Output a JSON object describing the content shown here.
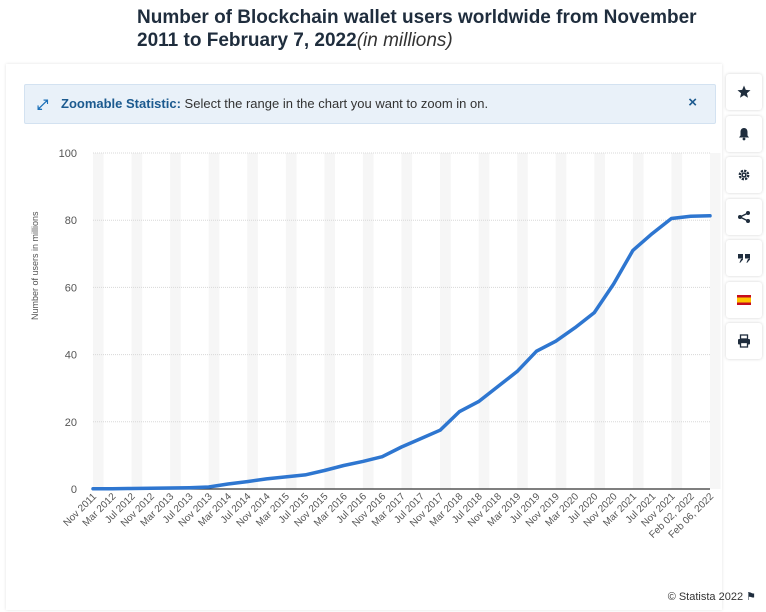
{
  "title": {
    "main": "Number of Blockchain wallet users worldwide from November 2011 to February 7, 2022",
    "sub": "(in millions)"
  },
  "banner": {
    "label": "Zoomable Statistic:",
    "text": "Select the range in the chart you want to zoom in on.",
    "close": "×"
  },
  "sidebar": [
    "star-icon",
    "bell-icon",
    "gear-icon",
    "share-icon",
    "quote-icon",
    "flag-icon",
    "print-icon"
  ],
  "copyright": "© Statista 2022",
  "colors": {
    "line": "#2e76d0",
    "accent": "#1c70b8"
  },
  "chart_data": {
    "type": "line",
    "ylabel": "Number of users in millions",
    "ylim": [
      0,
      100
    ],
    "yticks": [
      0,
      20,
      40,
      60,
      80,
      100
    ],
    "xticks": [
      "Nov 2011",
      "Mar 2012",
      "Jul 2012",
      "Nov 2012",
      "Mar 2013",
      "Jul 2013",
      "Nov 2013",
      "Mar 2014",
      "Jul 2014",
      "Nov 2014",
      "Mar 2015",
      "Jul 2015",
      "Nov 2015",
      "Mar 2016",
      "Jul 2016",
      "Nov 2016",
      "Mar 2017",
      "Jul 2017",
      "Nov 2017",
      "Mar 2018",
      "Jul 2018",
      "Nov 2018",
      "Mar 2019",
      "Jul 2019",
      "Nov 2019",
      "Mar 2020",
      "Jul 2020",
      "Nov 2020",
      "Mar 2021",
      "Jul 2021",
      "Nov 2021",
      "Feb 02, 2022",
      "Feb 06, 2022"
    ],
    "grid": true,
    "series": [
      {
        "x": [
          "Nov 2011",
          "Mar 2012",
          "Jul 2012",
          "Nov 2012",
          "Mar 2013",
          "Jul 2013",
          "Nov 2013",
          "Mar 2014",
          "Jul 2014",
          "Nov 2014",
          "Mar 2015",
          "Jul 2015",
          "Nov 2015",
          "Mar 2016",
          "Jul 2016",
          "Nov 2016",
          "Mar 2017",
          "Jul 2017",
          "Nov 2017",
          "Mar 2018",
          "Jul 2018",
          "Nov 2018",
          "Mar 2019",
          "Jul 2019",
          "Nov 2019",
          "Mar 2020",
          "Jul 2020",
          "Nov 2020",
          "Mar 2021",
          "Jul 2021",
          "Nov 2021",
          "Feb 02, 2022",
          "Feb 06, 2022"
        ],
        "values": [
          0.05,
          0.1,
          0.15,
          0.2,
          0.3,
          0.4,
          0.6,
          1.5,
          2.2,
          3.0,
          3.6,
          4.2,
          5.5,
          7.0,
          8.2,
          9.6,
          12.5,
          15.0,
          17.5,
          23.0,
          26.0,
          30.5,
          35.0,
          41.0,
          44.0,
          48.0,
          52.5,
          61.0,
          71.0,
          76.0,
          80.5,
          81.2,
          81.3
        ]
      }
    ]
  }
}
